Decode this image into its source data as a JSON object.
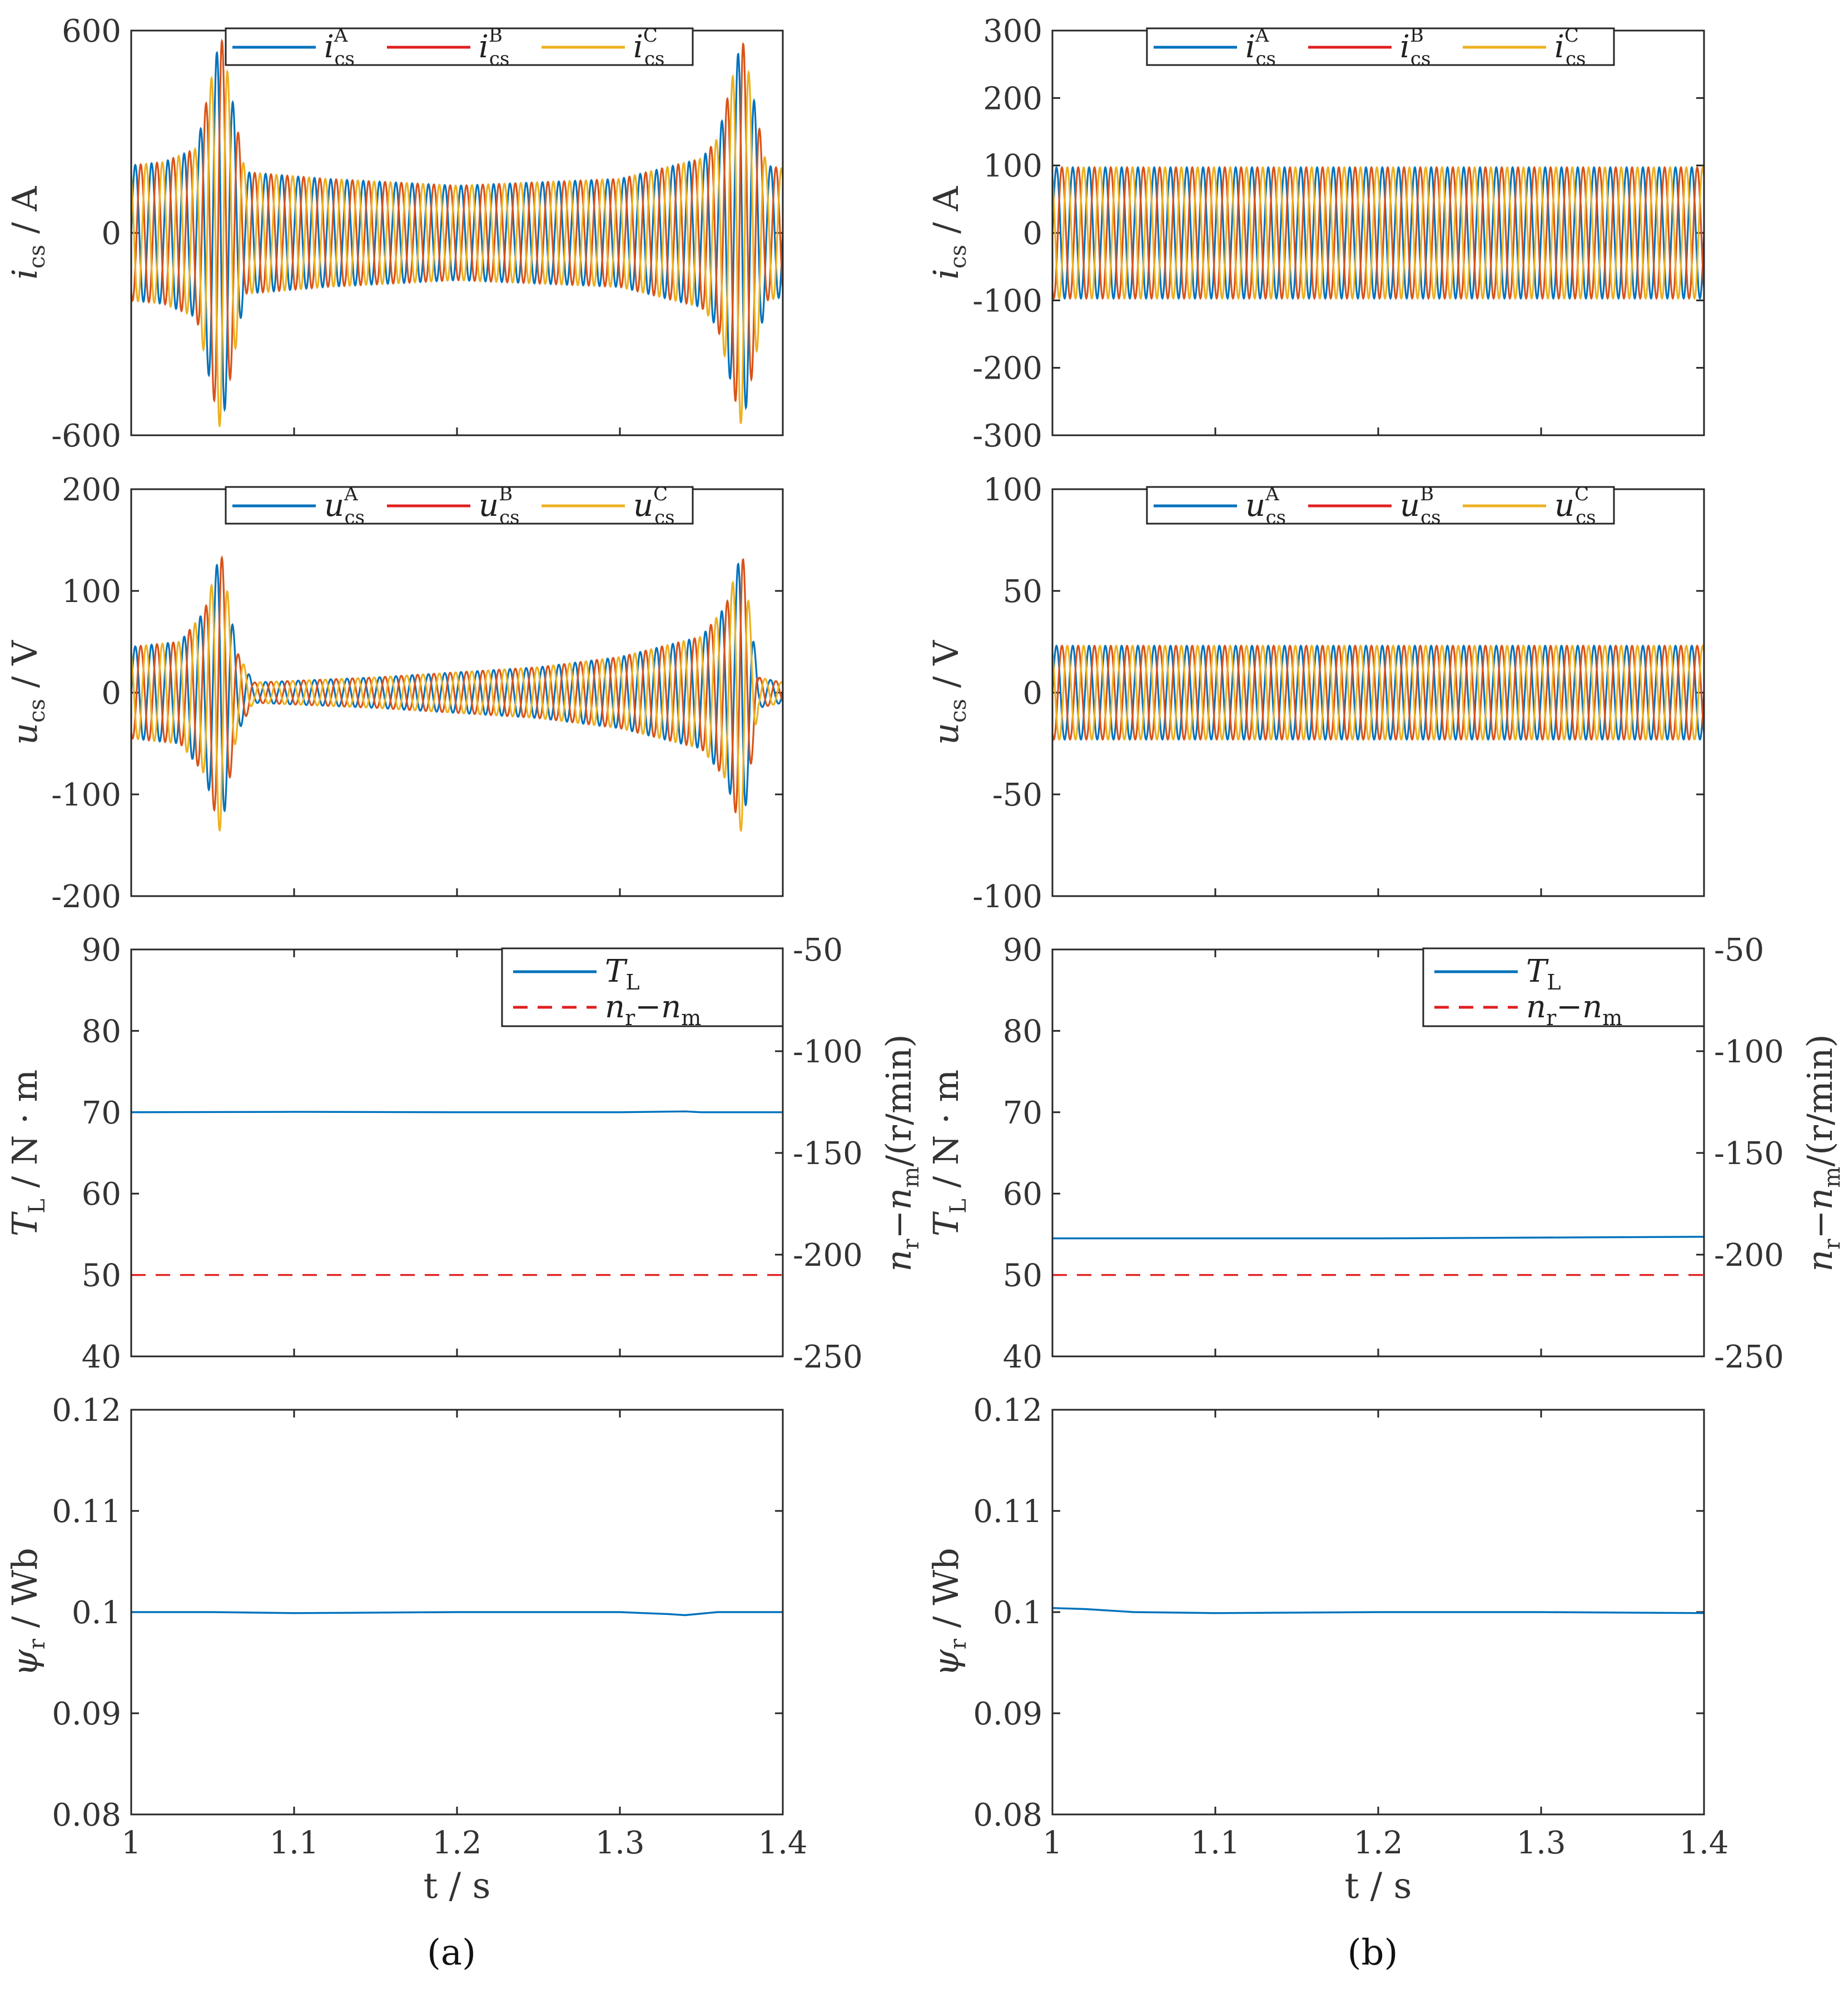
{
  "figure": {
    "captions": [
      "(a)",
      "(b)"
    ],
    "x_axis_label": "t / s",
    "x_ticks": [
      "1",
      "1.1",
      "1.2",
      "1.3",
      "1.4"
    ]
  },
  "colors": {
    "phase_a": "#0072BD",
    "phase_b": "#D95319",
    "phase_b_legend": "#E02020",
    "phase_c": "#EDB120",
    "torque": "#0072BD",
    "speed_diff": "#E02020",
    "flux": "#0072BD"
  },
  "legends": {
    "current": [
      {
        "base": "i",
        "sup": "A",
        "sub": "cs"
      },
      {
        "base": "i",
        "sup": "B",
        "sub": "cs"
      },
      {
        "base": "i",
        "sup": "C",
        "sub": "cs"
      }
    ],
    "voltage": [
      {
        "base": "u",
        "sup": "A",
        "sub": "cs"
      },
      {
        "base": "u",
        "sup": "B",
        "sub": "cs"
      },
      {
        "base": "u",
        "sup": "C",
        "sub": "cs"
      }
    ],
    "torque": [
      {
        "base": "T",
        "sub": "L"
      },
      {
        "base": "n",
        "sub": "r",
        "extra": "−n",
        "extra_sub": "m"
      }
    ]
  },
  "y_labels": {
    "current": {
      "base": "i",
      "sub": "cs",
      "rest": " / A"
    },
    "voltage": {
      "base": "u",
      "sub": "cs",
      "rest": " / V"
    },
    "torque": {
      "base": "T",
      "sub": "L",
      "rest": " / N · m"
    },
    "speed": {
      "base": "n",
      "sub": "r",
      "mid": "−n",
      "sub2": "m",
      "rest": "/(r/min)"
    },
    "flux": {
      "base": "ψ",
      "sub": "r",
      "rest": " / Wb"
    }
  },
  "chart_data": [
    {
      "id": "a-current",
      "type": "line",
      "panel": "a",
      "ylabel": "i_cs / A",
      "xlim": [
        1,
        1.4
      ],
      "ylim": [
        -600,
        600
      ],
      "yticks": [
        "600",
        "0",
        "-600"
      ],
      "series": [
        {
          "name": "i_cs^A",
          "phase_deg": 0
        },
        {
          "name": "i_cs^B",
          "phase_deg": -120
        },
        {
          "name": "i_cs^C",
          "phase_deg": 120
        }
      ],
      "frequency_hz": 100,
      "envelope": {
        "t": [
          1.0,
          1.02,
          1.04,
          1.055,
          1.07,
          1.12,
          1.2,
          1.3,
          1.35,
          1.36,
          1.375,
          1.39,
          1.4
        ],
        "amp": [
          200,
          210,
          250,
          590,
          180,
          160,
          140,
          160,
          220,
          280,
          580,
          200,
          190
        ]
      }
    },
    {
      "id": "b-current",
      "type": "line",
      "panel": "b",
      "ylabel": "i_cs / A",
      "xlim": [
        1,
        1.4
      ],
      "ylim": [
        -300,
        300
      ],
      "yticks": [
        "300",
        "200",
        "100",
        "0",
        "-100",
        "-200",
        "-300"
      ],
      "series": [
        {
          "name": "i_cs^A",
          "phase_deg": 0
        },
        {
          "name": "i_cs^B",
          "phase_deg": -120
        },
        {
          "name": "i_cs^C",
          "phase_deg": 120
        }
      ],
      "frequency_hz": 100,
      "envelope": {
        "t": [
          1.0,
          1.4
        ],
        "amp": [
          97,
          97
        ]
      }
    },
    {
      "id": "a-voltage",
      "type": "line",
      "panel": "a",
      "ylabel": "u_cs / V",
      "xlim": [
        1,
        1.4
      ],
      "ylim": [
        -200,
        200
      ],
      "yticks": [
        "200",
        "100",
        "0",
        "-100",
        "-200"
      ],
      "series": [
        {
          "name": "u_cs^A",
          "phase_deg": 0
        },
        {
          "name": "u_cs^B",
          "phase_deg": -120
        },
        {
          "name": "u_cs^C",
          "phase_deg": 120
        }
      ],
      "frequency_hz": 100,
      "envelope": {
        "t": [
          1.0,
          1.03,
          1.045,
          1.055,
          1.065,
          1.075,
          1.15,
          1.25,
          1.3,
          1.35,
          1.365,
          1.375,
          1.385,
          1.4
        ],
        "amp": [
          45,
          50,
          80,
          140,
          40,
          10,
          15,
          25,
          35,
          55,
          85,
          140,
          15,
          10
        ]
      }
    },
    {
      "id": "b-voltage",
      "type": "line",
      "panel": "b",
      "ylabel": "u_cs / V",
      "xlim": [
        1,
        1.4
      ],
      "ylim": [
        -100,
        100
      ],
      "yticks": [
        "100",
        "50",
        "0",
        "-50",
        "-100"
      ],
      "series": [
        {
          "name": "u_cs^A",
          "phase_deg": 0
        },
        {
          "name": "u_cs^B",
          "phase_deg": -120
        },
        {
          "name": "u_cs^C",
          "phase_deg": 120
        }
      ],
      "frequency_hz": 100,
      "envelope": {
        "t": [
          1.0,
          1.4
        ],
        "amp": [
          23,
          23
        ]
      }
    },
    {
      "id": "a-torque",
      "type": "line",
      "panel": "a",
      "ylabel": "T_L / N·m",
      "ylabel_right": "n_r − n_m /(r/min)",
      "xlim": [
        1,
        1.4
      ],
      "ylim": [
        40,
        90
      ],
      "ylim_right": [
        -250,
        -50
      ],
      "yticks": [
        "90",
        "80",
        "70",
        "60",
        "50",
        "40"
      ],
      "yticks_right": [
        "-50",
        "-100",
        "-150",
        "-200",
        "-250"
      ],
      "series": [
        {
          "name": "T_L",
          "axis": "left",
          "x": [
            1.0,
            1.1,
            1.2,
            1.3,
            1.34,
            1.35,
            1.4
          ],
          "y": [
            70,
            70.05,
            70,
            70,
            70.1,
            70,
            70
          ]
        },
        {
          "name": "n_r − n_m",
          "axis": "right",
          "dashed": true,
          "x": [
            1.0,
            1.4
          ],
          "y": [
            -210,
            -210
          ]
        }
      ]
    },
    {
      "id": "b-torque",
      "type": "line",
      "panel": "b",
      "ylabel": "T_L / N·m",
      "ylabel_right": "n_r − n_m /(r/min)",
      "xlim": [
        1,
        1.4
      ],
      "ylim": [
        40,
        90
      ],
      "ylim_right": [
        -250,
        -50
      ],
      "yticks": [
        "90",
        "80",
        "70",
        "60",
        "50",
        "40"
      ],
      "yticks_right": [
        "-50",
        "-100",
        "-150",
        "-200",
        "-250"
      ],
      "series": [
        {
          "name": "T_L",
          "axis": "left",
          "x": [
            1.0,
            1.2,
            1.4
          ],
          "y": [
            54.5,
            54.5,
            54.7
          ]
        },
        {
          "name": "n_r − n_m",
          "axis": "right",
          "dashed": true,
          "x": [
            1.0,
            1.4
          ],
          "y": [
            -210,
            -210
          ]
        }
      ]
    },
    {
      "id": "a-flux",
      "type": "line",
      "panel": "a",
      "ylabel": "ψ_r / Wb",
      "xlim": [
        1,
        1.4
      ],
      "ylim": [
        0.08,
        0.12
      ],
      "yticks": [
        "0.12",
        "0.11",
        "0.1",
        "0.09",
        "0.08"
      ],
      "series": [
        {
          "name": "ψ_r",
          "x": [
            1.0,
            1.05,
            1.1,
            1.2,
            1.3,
            1.33,
            1.34,
            1.36,
            1.4
          ],
          "y": [
            0.1,
            0.1,
            0.0999,
            0.1,
            0.1,
            0.0998,
            0.0997,
            0.1,
            0.1
          ]
        }
      ]
    },
    {
      "id": "b-flux",
      "type": "line",
      "panel": "b",
      "ylabel": "ψ_r / Wb",
      "xlim": [
        1,
        1.4
      ],
      "ylim": [
        0.08,
        0.12
      ],
      "yticks": [
        "0.12",
        "0.11",
        "0.1",
        "0.09",
        "0.08"
      ],
      "series": [
        {
          "name": "ψ_r",
          "x": [
            1.0,
            1.02,
            1.05,
            1.1,
            1.2,
            1.3,
            1.4
          ],
          "y": [
            0.1004,
            0.1003,
            0.1,
            0.0999,
            0.1,
            0.1,
            0.0999
          ]
        }
      ]
    }
  ]
}
